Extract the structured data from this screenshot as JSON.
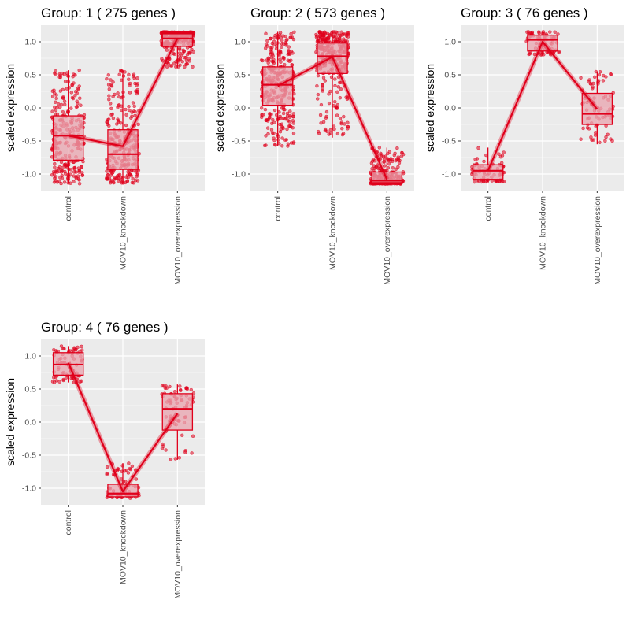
{
  "chart_data": [
    {
      "type": "box",
      "title": "Group: 1 ( 275  genes )",
      "ylabel": "scaled expression",
      "categories": [
        "control",
        "MOV10_knockdown",
        "MOV10_overexpression"
      ],
      "ylim": [
        -1.25,
        1.25
      ],
      "yticks": [
        "-1.0",
        "-0.5",
        "0.0",
        "0.5",
        "1.0"
      ],
      "y_tick_values": [
        -1.0,
        -0.5,
        0.0,
        0.5,
        1.0
      ],
      "n_genes": 275,
      "boxes": [
        {
          "min": -1.15,
          "q1": -0.79,
          "median": -0.42,
          "q3": -0.12,
          "max": 0.57
        },
        {
          "min": -1.15,
          "q1": -0.93,
          "median": -0.7,
          "q3": -0.33,
          "max": 0.57
        },
        {
          "min": 0.6,
          "q1": 0.93,
          "median": 1.05,
          "q3": 1.12,
          "max": 1.15
        }
      ],
      "trend": [
        -0.42,
        -0.58,
        1.05
      ]
    },
    {
      "type": "box",
      "title": "Group: 2 ( 573  genes )",
      "ylabel": "scaled expression",
      "categories": [
        "control",
        "MOV10_knockdown",
        "MOV10_overexpression"
      ],
      "ylim": [
        -1.25,
        1.25
      ],
      "yticks": [
        "-1.0",
        "-0.5",
        "0.0",
        "0.5",
        "1.0"
      ],
      "y_tick_values": [
        -1.0,
        -0.5,
        0.0,
        0.5,
        1.0
      ],
      "n_genes": 573,
      "boxes": [
        {
          "min": -0.58,
          "q1": 0.04,
          "median": 0.35,
          "q3": 0.62,
          "max": 1.15
        },
        {
          "min": -0.45,
          "q1": 0.52,
          "median": 0.78,
          "q3": 0.98,
          "max": 1.15
        },
        {
          "min": -1.15,
          "q1": -1.13,
          "median": -1.1,
          "q3": -0.97,
          "max": -0.6
        }
      ],
      "trend": [
        0.33,
        0.77,
        -1.08
      ]
    },
    {
      "type": "box",
      "title": "Group: 3 ( 76  genes )",
      "ylabel": "scaled expression",
      "categories": [
        "control",
        "MOV10_knockdown",
        "MOV10_overexpression"
      ],
      "ylim": [
        -1.25,
        1.25
      ],
      "yticks": [
        "-1.0",
        "-0.5",
        "0.0",
        "0.5",
        "1.0"
      ],
      "y_tick_values": [
        -1.0,
        -0.5,
        0.0,
        0.5,
        1.0
      ],
      "n_genes": 76,
      "boxes": [
        {
          "min": -1.12,
          "q1": -1.08,
          "median": -0.95,
          "q3": -0.86,
          "max": -0.6
        },
        {
          "min": 0.8,
          "q1": 0.86,
          "median": 1.03,
          "q3": 1.1,
          "max": 1.15
        },
        {
          "min": -0.55,
          "q1": -0.25,
          "median": -0.09,
          "q3": 0.22,
          "max": 0.55
        }
      ],
      "trend": [
        -0.95,
        1.0,
        -0.02
      ]
    },
    {
      "type": "box",
      "title": "Group: 4 ( 76  genes )",
      "ylabel": "scaled expression",
      "categories": [
        "control",
        "MOV10_knockdown",
        "MOV10_overexpression"
      ],
      "ylim": [
        -1.25,
        1.25
      ],
      "yticks": [
        "-1.0",
        "-0.5",
        "0.0",
        "0.5",
        "1.0"
      ],
      "y_tick_values": [
        -1.0,
        -0.5,
        0.0,
        0.5,
        1.0
      ],
      "n_genes": 76,
      "boxes": [
        {
          "min": 0.6,
          "q1": 0.71,
          "median": 0.87,
          "q3": 1.05,
          "max": 1.15
        },
        {
          "min": -1.15,
          "q1": -1.13,
          "median": -1.08,
          "q3": -0.94,
          "max": -0.62
        },
        {
          "min": -0.57,
          "q1": -0.12,
          "median": 0.2,
          "q3": 0.43,
          "max": 0.57
        }
      ],
      "trend": [
        0.9,
        -1.05,
        0.13
      ]
    }
  ],
  "colors": {
    "accent": "#e0001b",
    "box_fill": "#e8a3ad",
    "panel_bg": "#ebebeb",
    "grid": "#ffffff",
    "tick_text": "#4d4d4d"
  }
}
